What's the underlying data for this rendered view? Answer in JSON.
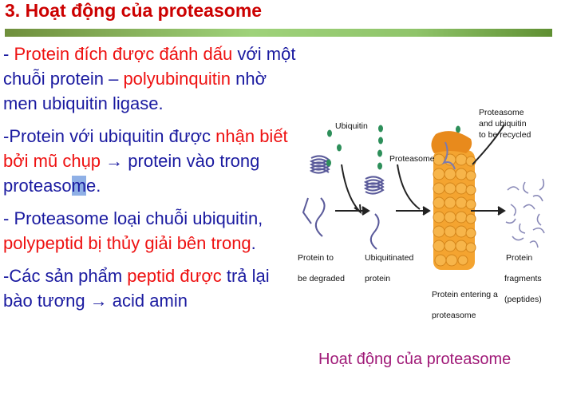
{
  "title": "3. Hoạt động của proteasome",
  "paragraphs": [
    [
      {
        "t": "- ",
        "red": false
      },
      {
        "t": "Protein đích được đánh dấu",
        "red": true
      },
      {
        "t": " với một chuỗi protein – ",
        "red": false
      },
      {
        "t": "polyubinquitin",
        "red": true
      },
      {
        "t": " nhờ men ubiquitin ligase.",
        "red": false
      }
    ],
    [
      {
        "t": "-Protein với ubiquitin được ",
        "red": false
      },
      {
        "t": "nhận biết bởi mũ chụp",
        "red": true
      },
      {
        "t": " → protein  vào trong proteaso",
        "red": false
      },
      {
        "t": "m",
        "cursor": true
      },
      {
        "t": "e.",
        "red": false
      }
    ],
    [
      {
        "t": "- Proteasome loại chuỗi ubiquitin, ",
        "red": false
      },
      {
        "t": "polypeptid bị thủy giải bên trong",
        "red": true
      },
      {
        "t": ".",
        "red": false
      }
    ],
    [
      {
        "t": "-Các sản phẩm ",
        "red": false
      },
      {
        "t": "peptid được",
        "red": true
      },
      {
        "t": " trả lại bào tương → acid amin",
        "red": false
      }
    ]
  ],
  "figure": {
    "labels": {
      "ubiquitin": "Ubiquitin",
      "proteasome": "Proteasome",
      "recycled_1": "Proteasome",
      "recycled_2": "and ubiquitin",
      "recycled_3": "to be recycled",
      "degraded_1": "Protein to",
      "degraded_2": "be degraded",
      "ubiquitinated_1": "Ubiquitinated",
      "ubiquitinated_2": "protein",
      "entering_1": "Protein entering a",
      "entering_2": "proteasome",
      "fragments_1": "Protein",
      "fragments_2": "fragments",
      "fragments_3": "(peptides)"
    }
  },
  "caption": "Hoạt động của proteasome",
  "colors": {
    "title": "#cc0000",
    "body_text": "#1a1aa0",
    "highlight": "#ee1111",
    "caption": "#a01a78",
    "bar": "#8fc46a"
  }
}
